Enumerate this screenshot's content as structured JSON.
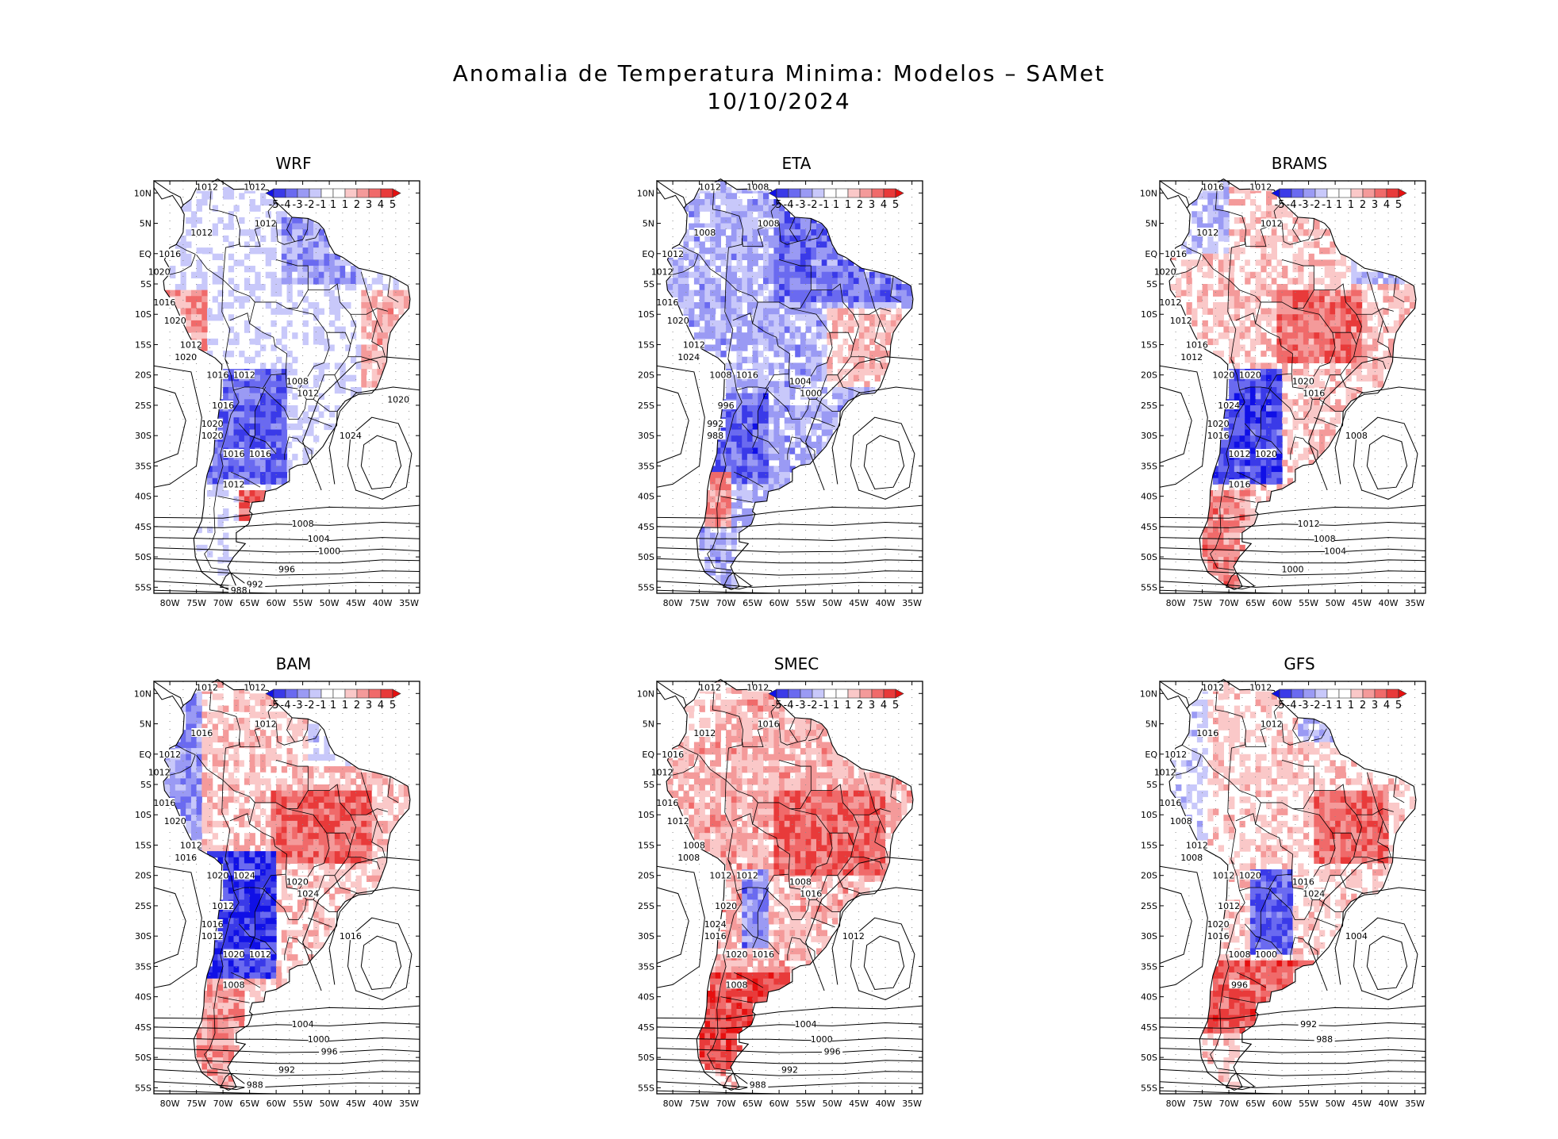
{
  "title": {
    "line1": "Anomalia de Temperatura Minima: Modelos – SAMet",
    "line2": "10/10/2024"
  },
  "colorbar": {
    "labels": [
      "-5",
      "-4",
      "-3",
      "-2",
      "-1",
      "1",
      "1",
      "2",
      "3",
      "4",
      "5"
    ],
    "colors": [
      "#1010e6",
      "#3a3ae8",
      "#6a6af0",
      "#9a9af4",
      "#c8c8fa",
      "#ffffff",
      "#ffffff",
      "#fac8c8",
      "#f49a9a",
      "#f06a6a",
      "#e83a3a",
      "#e61010"
    ]
  },
  "axes": {
    "lat_labels": [
      "10N",
      "5N",
      "EQ",
      "5S",
      "10S",
      "15S",
      "20S",
      "25S",
      "30S",
      "35S",
      "40S",
      "45S",
      "50S",
      "55S"
    ],
    "lon_labels": [
      "80W",
      "75W",
      "70W",
      "65W",
      "60W",
      "55W",
      "50W",
      "45W",
      "40W",
      "35W"
    ]
  },
  "panels": [
    {
      "name": "WRF",
      "anomaly": "mixed-cold",
      "isobars": [
        "1012",
        "1012",
        "1012",
        "1012",
        "1016",
        "1020",
        "1016",
        "1020",
        "1012",
        "1020",
        "1016",
        "1012",
        "1008",
        "1012",
        "1016",
        "1020",
        "1020",
        "1016",
        "1024",
        "1016",
        "1012",
        "1008",
        "1004",
        "1000",
        "996",
        "992",
        "988",
        "1020"
      ]
    },
    {
      "name": "ETA",
      "anomaly": "cold",
      "isobars": [
        "1012",
        "1008",
        "1008",
        "1008",
        "1012",
        "1012",
        "1016",
        "1020",
        "1012",
        "1024",
        "1008",
        "1016",
        "1004",
        "1000",
        "996",
        "992",
        "988"
      ]
    },
    {
      "name": "BRAMS",
      "anomaly": "mixed-warm",
      "isobars": [
        "1016",
        "1012",
        "1012",
        "1012",
        "1016",
        "1020",
        "1012",
        "1012",
        "1016",
        "1012",
        "1020",
        "1020",
        "1020",
        "1016",
        "1024",
        "1020",
        "1016",
        "1012",
        "1008",
        "1020",
        "1016",
        "1012",
        "1008",
        "1004",
        "1000"
      ]
    },
    {
      "name": "BAM",
      "anomaly": "warm-north-cold-andes",
      "isobars": [
        "1012",
        "1012",
        "1012",
        "1016",
        "1012",
        "1012",
        "1016",
        "1020",
        "1012",
        "1016",
        "1020",
        "1024",
        "1020",
        "1024",
        "1012",
        "1016",
        "1012",
        "1020",
        "1016",
        "1012",
        "1008",
        "1004",
        "1000",
        "996",
        "992",
        "988"
      ]
    },
    {
      "name": "SMEC",
      "anomaly": "warm",
      "isobars": [
        "1012",
        "1012",
        "1016",
        "1012",
        "1016",
        "1012",
        "1016",
        "1012",
        "1008",
        "1008",
        "1012",
        "1012",
        "1008",
        "1016",
        "1020",
        "1024",
        "1016",
        "1020",
        "1012",
        "1016",
        "1008",
        "1004",
        "1000",
        "996",
        "992",
        "988"
      ]
    },
    {
      "name": "GFS",
      "anomaly": "warm-mixed",
      "isobars": [
        "1012",
        "1012",
        "1012",
        "1016",
        "1012",
        "1012",
        "1016",
        "1008",
        "1012",
        "1008",
        "1012",
        "1020",
        "1016",
        "1024",
        "1012",
        "1020",
        "1016",
        "1008",
        "1004",
        "1000",
        "996",
        "992",
        "988"
      ]
    }
  ]
}
